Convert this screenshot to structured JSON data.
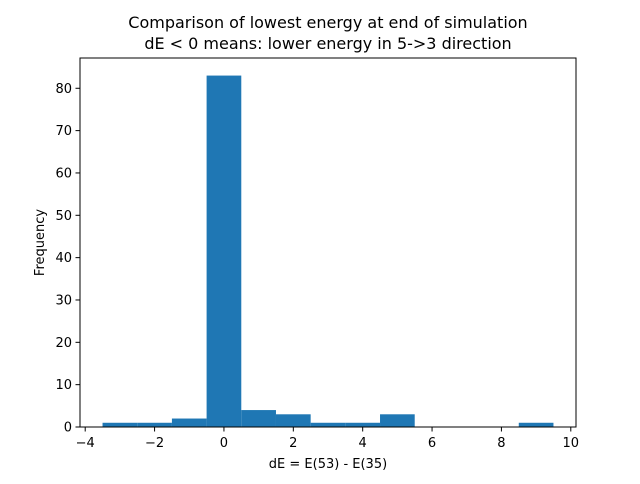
{
  "chart_data": {
    "type": "bar",
    "title": "Comparison of lowest energy at end of simulation",
    "subtitle": "dE < 0 means: lower energy in 5->3 direction",
    "xlabel": "dE = E(53) - E(35)",
    "ylabel": "Frequency",
    "xlim": [
      -4.15,
      10.15
    ],
    "ylim": [
      0,
      87.15
    ],
    "x_ticks": [
      -4,
      -2,
      0,
      2,
      4,
      6,
      8,
      10
    ],
    "y_ticks": [
      0,
      10,
      20,
      30,
      40,
      50,
      60,
      70,
      80
    ],
    "bin_edges": [
      -3.5,
      -2.5,
      -1.5,
      -0.5,
      0.5,
      1.5,
      2.5,
      3.5,
      4.5,
      5.5,
      6.5,
      7.5,
      8.5,
      9.5
    ],
    "values": [
      1,
      1,
      2,
      83,
      4,
      3,
      1,
      1,
      3,
      0,
      0,
      0,
      1
    ],
    "bar_color": "#1f77b4",
    "grid": false,
    "legend": "none"
  }
}
